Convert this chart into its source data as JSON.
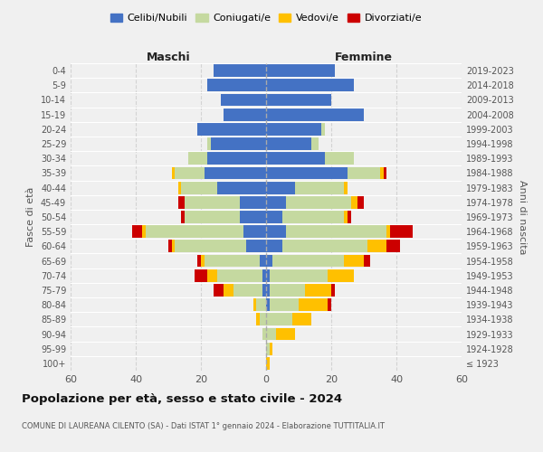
{
  "age_groups": [
    "100+",
    "95-99",
    "90-94",
    "85-89",
    "80-84",
    "75-79",
    "70-74",
    "65-69",
    "60-64",
    "55-59",
    "50-54",
    "45-49",
    "40-44",
    "35-39",
    "30-34",
    "25-29",
    "20-24",
    "15-19",
    "10-14",
    "5-9",
    "0-4"
  ],
  "birth_years": [
    "≤ 1923",
    "1924-1928",
    "1929-1933",
    "1934-1938",
    "1939-1943",
    "1944-1948",
    "1949-1953",
    "1954-1958",
    "1959-1963",
    "1964-1968",
    "1969-1973",
    "1974-1978",
    "1979-1983",
    "1984-1988",
    "1989-1993",
    "1994-1998",
    "1999-2003",
    "2004-2008",
    "2009-2013",
    "2014-2018",
    "2019-2023"
  ],
  "maschi": {
    "celibi": [
      0,
      0,
      0,
      0,
      0,
      1,
      1,
      2,
      6,
      7,
      8,
      8,
      15,
      19,
      18,
      17,
      21,
      13,
      14,
      18,
      16
    ],
    "coniugati": [
      0,
      0,
      1,
      2,
      3,
      9,
      14,
      17,
      22,
      30,
      17,
      17,
      11,
      9,
      6,
      1,
      0,
      0,
      0,
      0,
      0
    ],
    "vedovi": [
      0,
      0,
      0,
      1,
      1,
      3,
      3,
      1,
      1,
      1,
      0,
      0,
      1,
      1,
      0,
      0,
      0,
      0,
      0,
      0,
      0
    ],
    "divorziati": [
      0,
      0,
      0,
      0,
      0,
      3,
      4,
      1,
      1,
      3,
      1,
      2,
      0,
      0,
      0,
      0,
      0,
      0,
      0,
      0,
      0
    ]
  },
  "femmine": {
    "nubili": [
      0,
      0,
      0,
      0,
      1,
      1,
      1,
      2,
      5,
      6,
      5,
      6,
      9,
      25,
      18,
      14,
      17,
      30,
      20,
      27,
      21
    ],
    "coniugate": [
      0,
      1,
      3,
      8,
      9,
      11,
      18,
      22,
      26,
      31,
      19,
      20,
      15,
      10,
      9,
      2,
      1,
      0,
      0,
      0,
      0
    ],
    "vedove": [
      1,
      1,
      6,
      6,
      9,
      8,
      8,
      6,
      6,
      1,
      1,
      2,
      1,
      1,
      0,
      0,
      0,
      0,
      0,
      0,
      0
    ],
    "divorziate": [
      0,
      0,
      0,
      0,
      1,
      1,
      0,
      2,
      4,
      7,
      1,
      2,
      0,
      1,
      0,
      0,
      0,
      0,
      0,
      0,
      0
    ]
  },
  "colors": {
    "celibi": "#4472c4",
    "coniugati": "#c5d9a0",
    "vedovi": "#ffc000",
    "divorziati": "#cc0000"
  },
  "title": "Popolazione per età, sesso e stato civile - 2024",
  "subtitle": "COMUNE DI LAUREANA CILENTO (SA) - Dati ISTAT 1° gennaio 2024 - Elaborazione TUTTITALIA.IT",
  "xlabel_maschi": "Maschi",
  "xlabel_femmine": "Femmine",
  "ylabel_left": "Fasce di età",
  "ylabel_right": "Anni di nascita",
  "xlim": 60,
  "legend_labels": [
    "Celibi/Nubili",
    "Coniugati/e",
    "Vedovi/e",
    "Divorziati/e"
  ],
  "background_color": "#f0f0f0"
}
